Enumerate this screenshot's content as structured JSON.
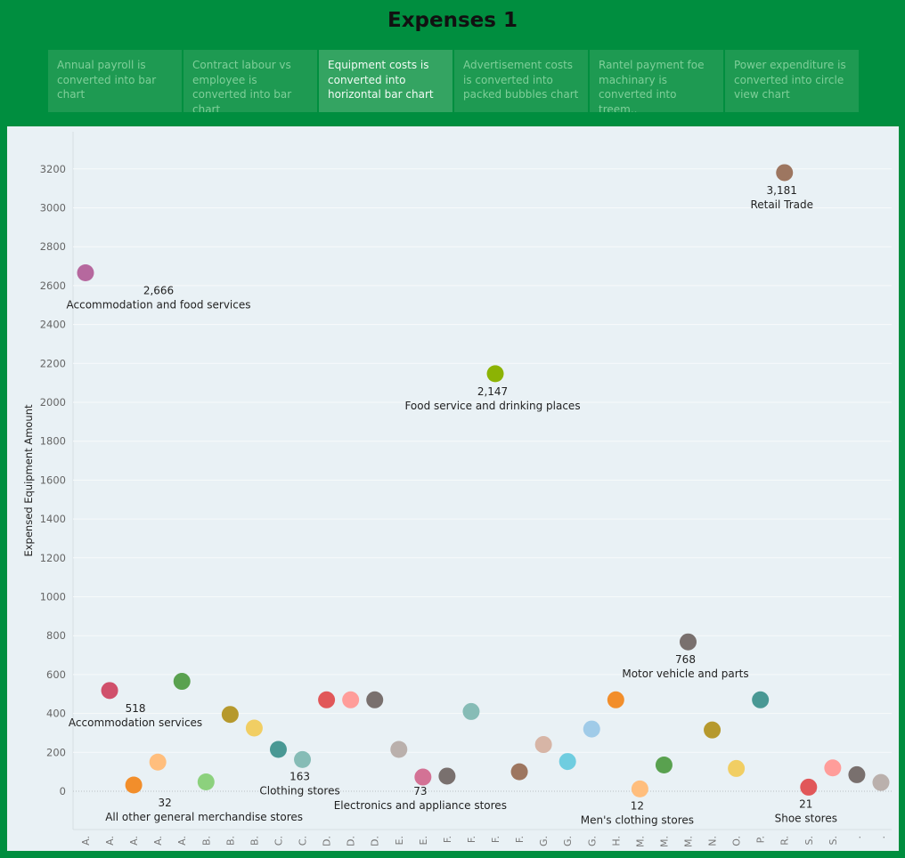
{
  "page": {
    "title": "Expenses 1"
  },
  "tabs": [
    {
      "label": "Annual payroll is converted into bar chart",
      "active": false
    },
    {
      "label": "Contract labour vs employee is converted into bar chart",
      "active": false
    },
    {
      "label": "Equipment costs is converted into horizontal bar chart",
      "active": true
    },
    {
      "label": "Advertisement costs is converted into packed bubbles chart",
      "active": false
    },
    {
      "label": "Rantel payment foe machinary is converted into  treem..",
      "active": false
    },
    {
      "label": "Power expenditure is converted into  circle view chart",
      "active": false
    }
  ],
  "chart_data": {
    "type": "scatter",
    "title": "",
    "ylabel": "Expensed Equipment Amount",
    "xlabel": "",
    "ylim": [
      -100,
      3400
    ],
    "yticks": [
      0,
      200,
      400,
      600,
      800,
      1000,
      1200,
      1400,
      1600,
      1800,
      2000,
      2200,
      2400,
      2600,
      2800,
      3000,
      3200
    ],
    "grid": true,
    "categories": [
      "A.",
      "A.",
      "A.",
      "A.",
      "A.",
      "B.",
      "B.",
      "B.",
      "C.",
      "C.",
      "D.",
      "D.",
      "D.",
      "E.",
      "E.",
      "F.",
      "F.",
      "F.",
      "F.",
      "G.",
      "G.",
      "G.",
      "H.",
      "M.",
      "M.",
      "M.",
      "N.",
      "O.",
      "P.",
      "R.",
      "S.",
      "S.",
      ".",
      "."
    ],
    "values": [
      2666,
      518,
      32,
      150,
      565,
      48,
      395,
      325,
      215,
      163,
      470,
      470,
      470,
      215,
      73,
      78,
      410,
      2147,
      100,
      240,
      153,
      320,
      470,
      12,
      135,
      768,
      315,
      117,
      470,
      3181,
      21,
      120,
      85,
      45
    ],
    "colors": [
      "#b6689e",
      "#d0506b",
      "#f28e2b",
      "#ffbe7d",
      "#59a14f",
      "#8cd17d",
      "#b6992d",
      "#f1ce63",
      "#499894",
      "#86bcb6",
      "#e15759",
      "#ff9d9a",
      "#79706e",
      "#bab0ac",
      "#d37295",
      "#79706e",
      "#86bcb6",
      "#8cb304",
      "#9d7660",
      "#d7b5a6",
      "#6fcde0",
      "#a0cbe8",
      "#f28e2b",
      "#ffbe7d",
      "#59a14f",
      "#79706e",
      "#b6992d",
      "#f1ce63",
      "#499894",
      "#9d7660",
      "#e15759",
      "#ff9d9a",
      "#79706e",
      "#bab0ac"
    ],
    "annotations": [
      {
        "index": 0,
        "value": "2,666",
        "label": "Accommodation and food services"
      },
      {
        "index": 1,
        "value": "518",
        "label": "Accommodation services"
      },
      {
        "index": 2,
        "value": "32",
        "label": "All other general merchandise stores"
      },
      {
        "index": 9,
        "value": "163",
        "label": "Clothing stores"
      },
      {
        "index": 14,
        "value": "73",
        "label": "Electronics and appliance stores"
      },
      {
        "index": 17,
        "value": "2,147",
        "label": "Food service and drinking places"
      },
      {
        "index": 23,
        "value": "12",
        "label": "Men's clothing stores"
      },
      {
        "index": 25,
        "value": "768",
        "label": "Motor vehicle and parts"
      },
      {
        "index": 29,
        "value": "3,181",
        "label": "Retail Trade"
      },
      {
        "index": 30,
        "value": "21",
        "label": "Shoe stores"
      }
    ]
  }
}
